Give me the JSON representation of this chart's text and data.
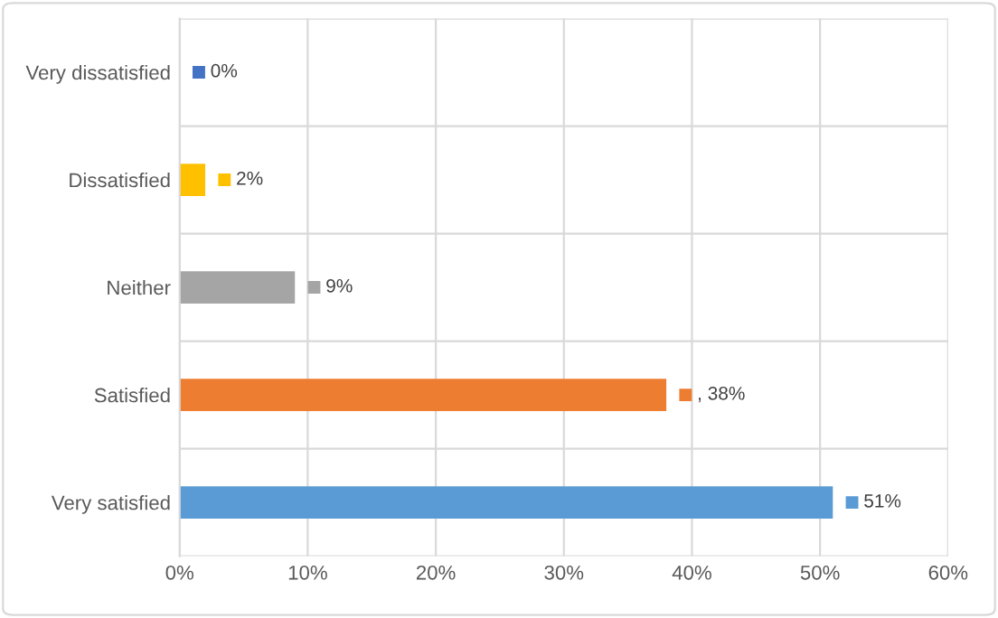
{
  "chart_data": {
    "type": "bar",
    "orientation": "horizontal",
    "categories": [
      "Very dissatisfied",
      "Dissatisfied",
      "Neither",
      "Satisfied",
      "Very satisfied"
    ],
    "values": [
      0,
      2,
      9,
      38,
      51
    ],
    "colors": [
      "#4472c4",
      "#ffc000",
      "#a5a5a5",
      "#ed7d31",
      "#5b9bd5"
    ],
    "value_labels": [
      "0%",
      "2%",
      "9%",
      ", 38%",
      "51%"
    ],
    "xlim": [
      0,
      60
    ],
    "xticks": [
      {
        "value": 0,
        "label": "0%"
      },
      {
        "value": 10,
        "label": "10%"
      },
      {
        "value": 20,
        "label": "20%"
      },
      {
        "value": 30,
        "label": "30%"
      },
      {
        "value": 40,
        "label": "40%"
      },
      {
        "value": 50,
        "label": "50%"
      },
      {
        "value": 60,
        "label": "60%"
      }
    ],
    "grid": true
  }
}
